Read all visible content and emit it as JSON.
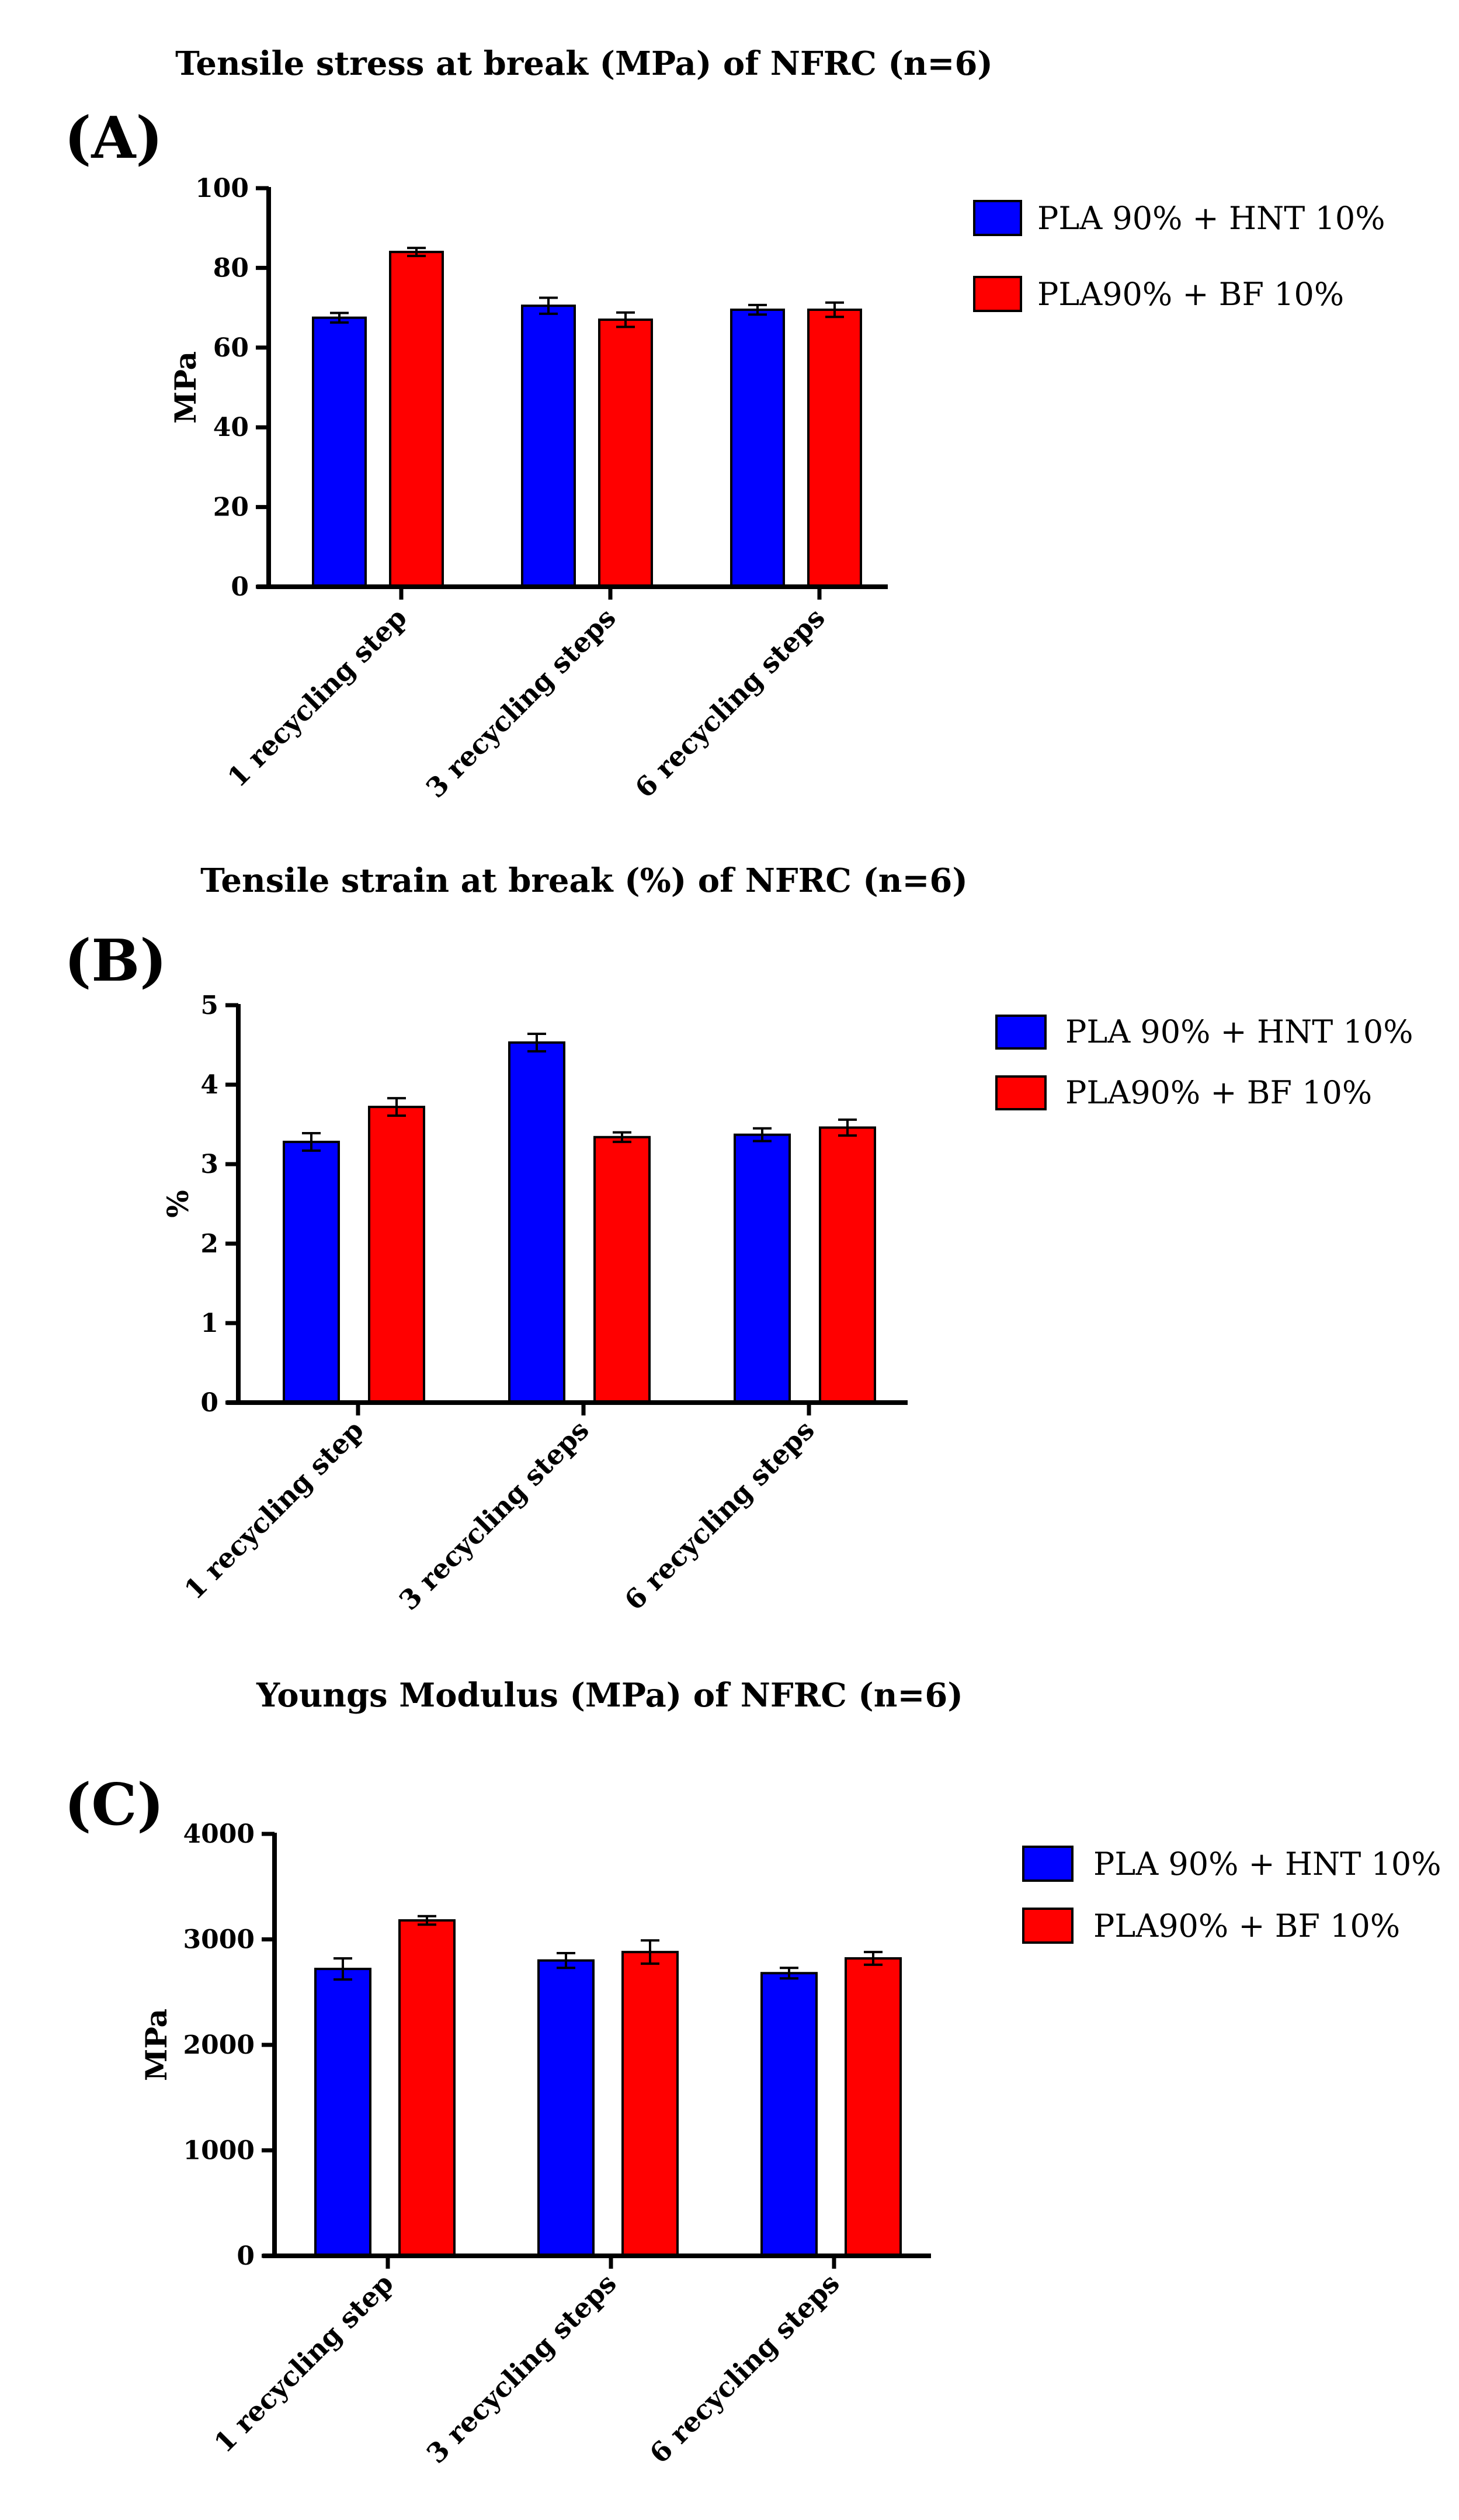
{
  "colors": {
    "series_1": "#0000FF",
    "series_2": "#FF0000",
    "axis": "#000000",
    "background": "#FFFFFF"
  },
  "panels": [
    {
      "label": "(A)"
    },
    {
      "label": "(B)"
    },
    {
      "label": "(C)"
    }
  ],
  "chart_data": [
    {
      "type": "bar",
      "title": "Tensile stress at break (MPa) of NFRC (n=6)",
      "xlabel": "",
      "ylabel": "MPa",
      "ylim": [
        0,
        100
      ],
      "yticks": [
        0,
        20,
        40,
        60,
        80,
        100
      ],
      "ytick_labels": [
        "0",
        "20",
        "40",
        "60",
        "80",
        "100"
      ],
      "categories": [
        "1 recycling step",
        "3 recycling steps",
        "6 recycling steps"
      ],
      "series": [
        {
          "name": "PLA 90% + HNT 10%",
          "values": [
            67.5,
            70.5,
            69.5
          ],
          "errors": [
            1.2,
            2.0,
            1.2
          ]
        },
        {
          "name": "PLA90% + BF 10%",
          "values": [
            84,
            67,
            69.5
          ],
          "errors": [
            1.0,
            1.8,
            1.8
          ]
        }
      ],
      "legend_position": "top-right",
      "grid": false
    },
    {
      "type": "bar",
      "title": "Tensile strain at break (%) of NFRC (n=6)",
      "xlabel": "",
      "ylabel": "%",
      "ylim": [
        0,
        5
      ],
      "yticks": [
        0,
        1,
        2,
        3,
        4,
        5
      ],
      "ytick_labels": [
        "0",
        "1",
        "2",
        "3",
        "4",
        "5"
      ],
      "categories": [
        "1 recycling step",
        "3 recycling steps",
        "6 recycling steps"
      ],
      "series": [
        {
          "name": "PLA 90% + HNT 10%",
          "values": [
            3.28,
            4.53,
            3.37
          ],
          "errors": [
            0.11,
            0.11,
            0.08
          ]
        },
        {
          "name": "PLA90% + BF 10%",
          "values": [
            3.72,
            3.34,
            3.46
          ],
          "errors": [
            0.11,
            0.06,
            0.1
          ]
        }
      ],
      "legend_position": "top-right",
      "grid": false
    },
    {
      "type": "bar",
      "title": "Youngs Modulus (MPa) of NFRC (n=6)",
      "xlabel": "",
      "ylabel": "MPa",
      "ylim": [
        0,
        4000
      ],
      "yticks": [
        0,
        1000,
        2000,
        3000,
        4000
      ],
      "ytick_labels": [
        "0",
        "1000",
        "2000",
        "3000",
        "4000"
      ],
      "categories": [
        "1 recycling step",
        "3 recycling steps",
        "6 recycling steps"
      ],
      "series": [
        {
          "name": "PLA 90% + HNT 10%",
          "values": [
            2720,
            2800,
            2680
          ],
          "errors": [
            100,
            70,
            50
          ]
        },
        {
          "name": "PLA90% + BF 10%",
          "values": [
            3180,
            2880,
            2820
          ],
          "errors": [
            40,
            110,
            60
          ]
        }
      ],
      "legend_position": "top-right",
      "grid": false
    }
  ]
}
